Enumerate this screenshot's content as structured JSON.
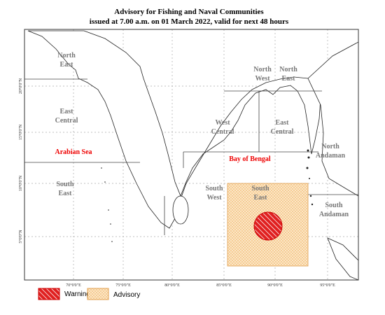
{
  "title": [
    "Advisory for Fishing and Naval Communities",
    "issued at 7.00 a.m. on 01 March  2022, valid for next 48 hours"
  ],
  "longitude_labels": [
    "70°0'0\"E",
    "75°0'0\"E",
    "80°0'0\"E",
    "85°0'0\"E",
    "90°0'0\"E",
    "95°0'0\"E"
  ],
  "latitude_labels": [
    "20°0'0\"N",
    "15°0'0\"N",
    "10°0'0\"N",
    "5°0'0\"N"
  ],
  "regions": [
    {
      "lines": [
        "North",
        "East"
      ]
    },
    {
      "lines": [
        "North",
        "West"
      ]
    },
    {
      "lines": [
        "North",
        "East"
      ]
    },
    {
      "lines": [
        "East",
        "Central"
      ]
    },
    {
      "lines": [
        "West",
        "Central"
      ]
    },
    {
      "lines": [
        "East",
        "Central"
      ]
    },
    {
      "lines": [
        "North",
        "Andaman"
      ]
    },
    {
      "lines": [
        "South",
        "East"
      ]
    },
    {
      "lines": [
        "South",
        "West"
      ]
    },
    {
      "lines": [
        "South",
        "East"
      ]
    },
    {
      "lines": [
        "South",
        "Andaman"
      ]
    }
  ],
  "seas": [
    "Arabian Sea",
    "Bay of Bengal"
  ],
  "legend": [
    "Warning",
    "Advisory"
  ]
}
